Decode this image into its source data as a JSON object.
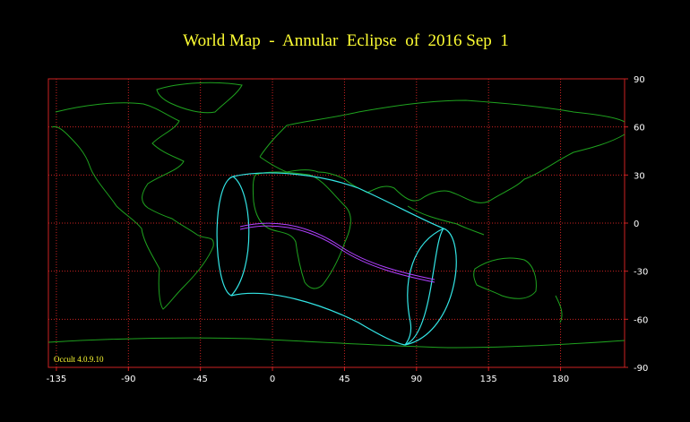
{
  "title": "World Map  -  Annular  Eclipse  of  2016 Sep  1",
  "footer": "Occult 4.0.9.10",
  "map": {
    "xlim": [
      -140,
      220
    ],
    "ylim": [
      -90,
      90
    ],
    "xticks": [
      -135,
      -90,
      -45,
      0,
      45,
      90,
      135,
      180
    ],
    "yticks": [
      90,
      60,
      30,
      0,
      -30,
      -60,
      -90
    ],
    "grid": true
  }
}
